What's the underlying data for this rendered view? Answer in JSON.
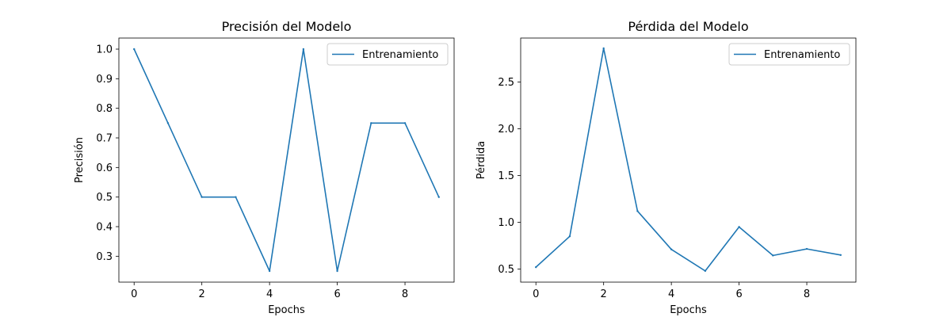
{
  "chart_data": [
    {
      "type": "line",
      "title": "Precisión del Modelo",
      "xlabel": "Epochs",
      "ylabel": "Precisión",
      "xlim": [
        -0.45,
        9.45
      ],
      "ylim": [
        0.2125,
        1.0375
      ],
      "xticks": [
        0,
        2,
        4,
        6,
        8
      ],
      "yticks": [
        0.3,
        0.4,
        0.5,
        0.6,
        0.7,
        0.8,
        0.9,
        1.0
      ],
      "ytick_labels": [
        "0.3",
        "0.4",
        "0.5",
        "0.6",
        "0.7",
        "0.8",
        "0.9",
        "1.0"
      ],
      "x": [
        0,
        1,
        2,
        3,
        4,
        5,
        6,
        7,
        8,
        9
      ],
      "series": [
        {
          "name": "Entrenamiento",
          "color": "#1f77b4",
          "values": [
            1.0,
            0.75,
            0.5,
            0.5,
            0.25,
            1.0,
            0.25,
            0.75,
            0.75,
            0.5
          ]
        }
      ],
      "legend": "top-right",
      "grid": false
    },
    {
      "type": "line",
      "title": "Pérdida del Modelo",
      "xlabel": "Epochs",
      "ylabel": "Pérdida",
      "xlim": [
        -0.45,
        9.45
      ],
      "ylim": [
        0.36,
        2.97
      ],
      "xticks": [
        0,
        2,
        4,
        6,
        8
      ],
      "yticks": [
        0.5,
        1.0,
        1.5,
        2.0,
        2.5
      ],
      "ytick_labels": [
        "0.5",
        "1.0",
        "1.5",
        "2.0",
        "2.5"
      ],
      "x": [
        0,
        1,
        2,
        3,
        4,
        5,
        6,
        7,
        8,
        9
      ],
      "series": [
        {
          "name": "Entrenamiento",
          "color": "#1f77b4",
          "values": [
            0.52,
            0.85,
            2.86,
            1.12,
            0.71,
            0.48,
            0.95,
            0.645,
            0.715,
            0.65
          ]
        }
      ],
      "legend": "top-right",
      "grid": false
    }
  ]
}
